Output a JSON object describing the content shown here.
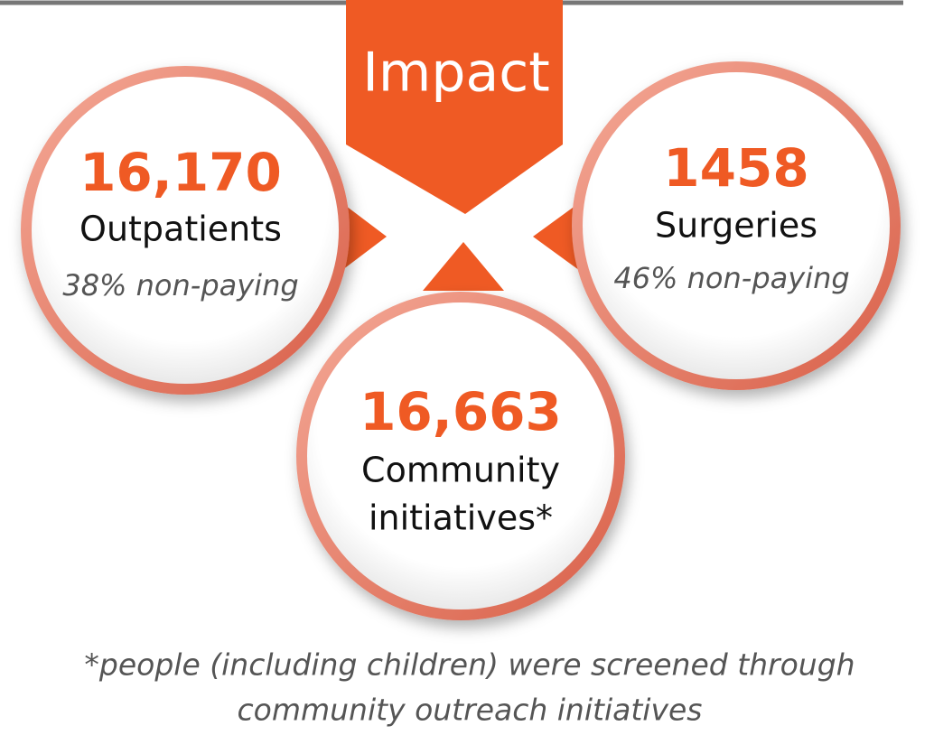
{
  "title": "Impact",
  "stats": [
    {
      "number": "16,170",
      "label": "Outpatients",
      "note": "38% non-paying"
    },
    {
      "number": "1458",
      "label": "Surgeries",
      "note": "46% non-paying"
    },
    {
      "number": "16,663",
      "label_lines": [
        "Community",
        "initiatives*"
      ]
    }
  ],
  "footnote": [
    "*people (including children) were screened through",
    "community outreach initiatives"
  ]
}
